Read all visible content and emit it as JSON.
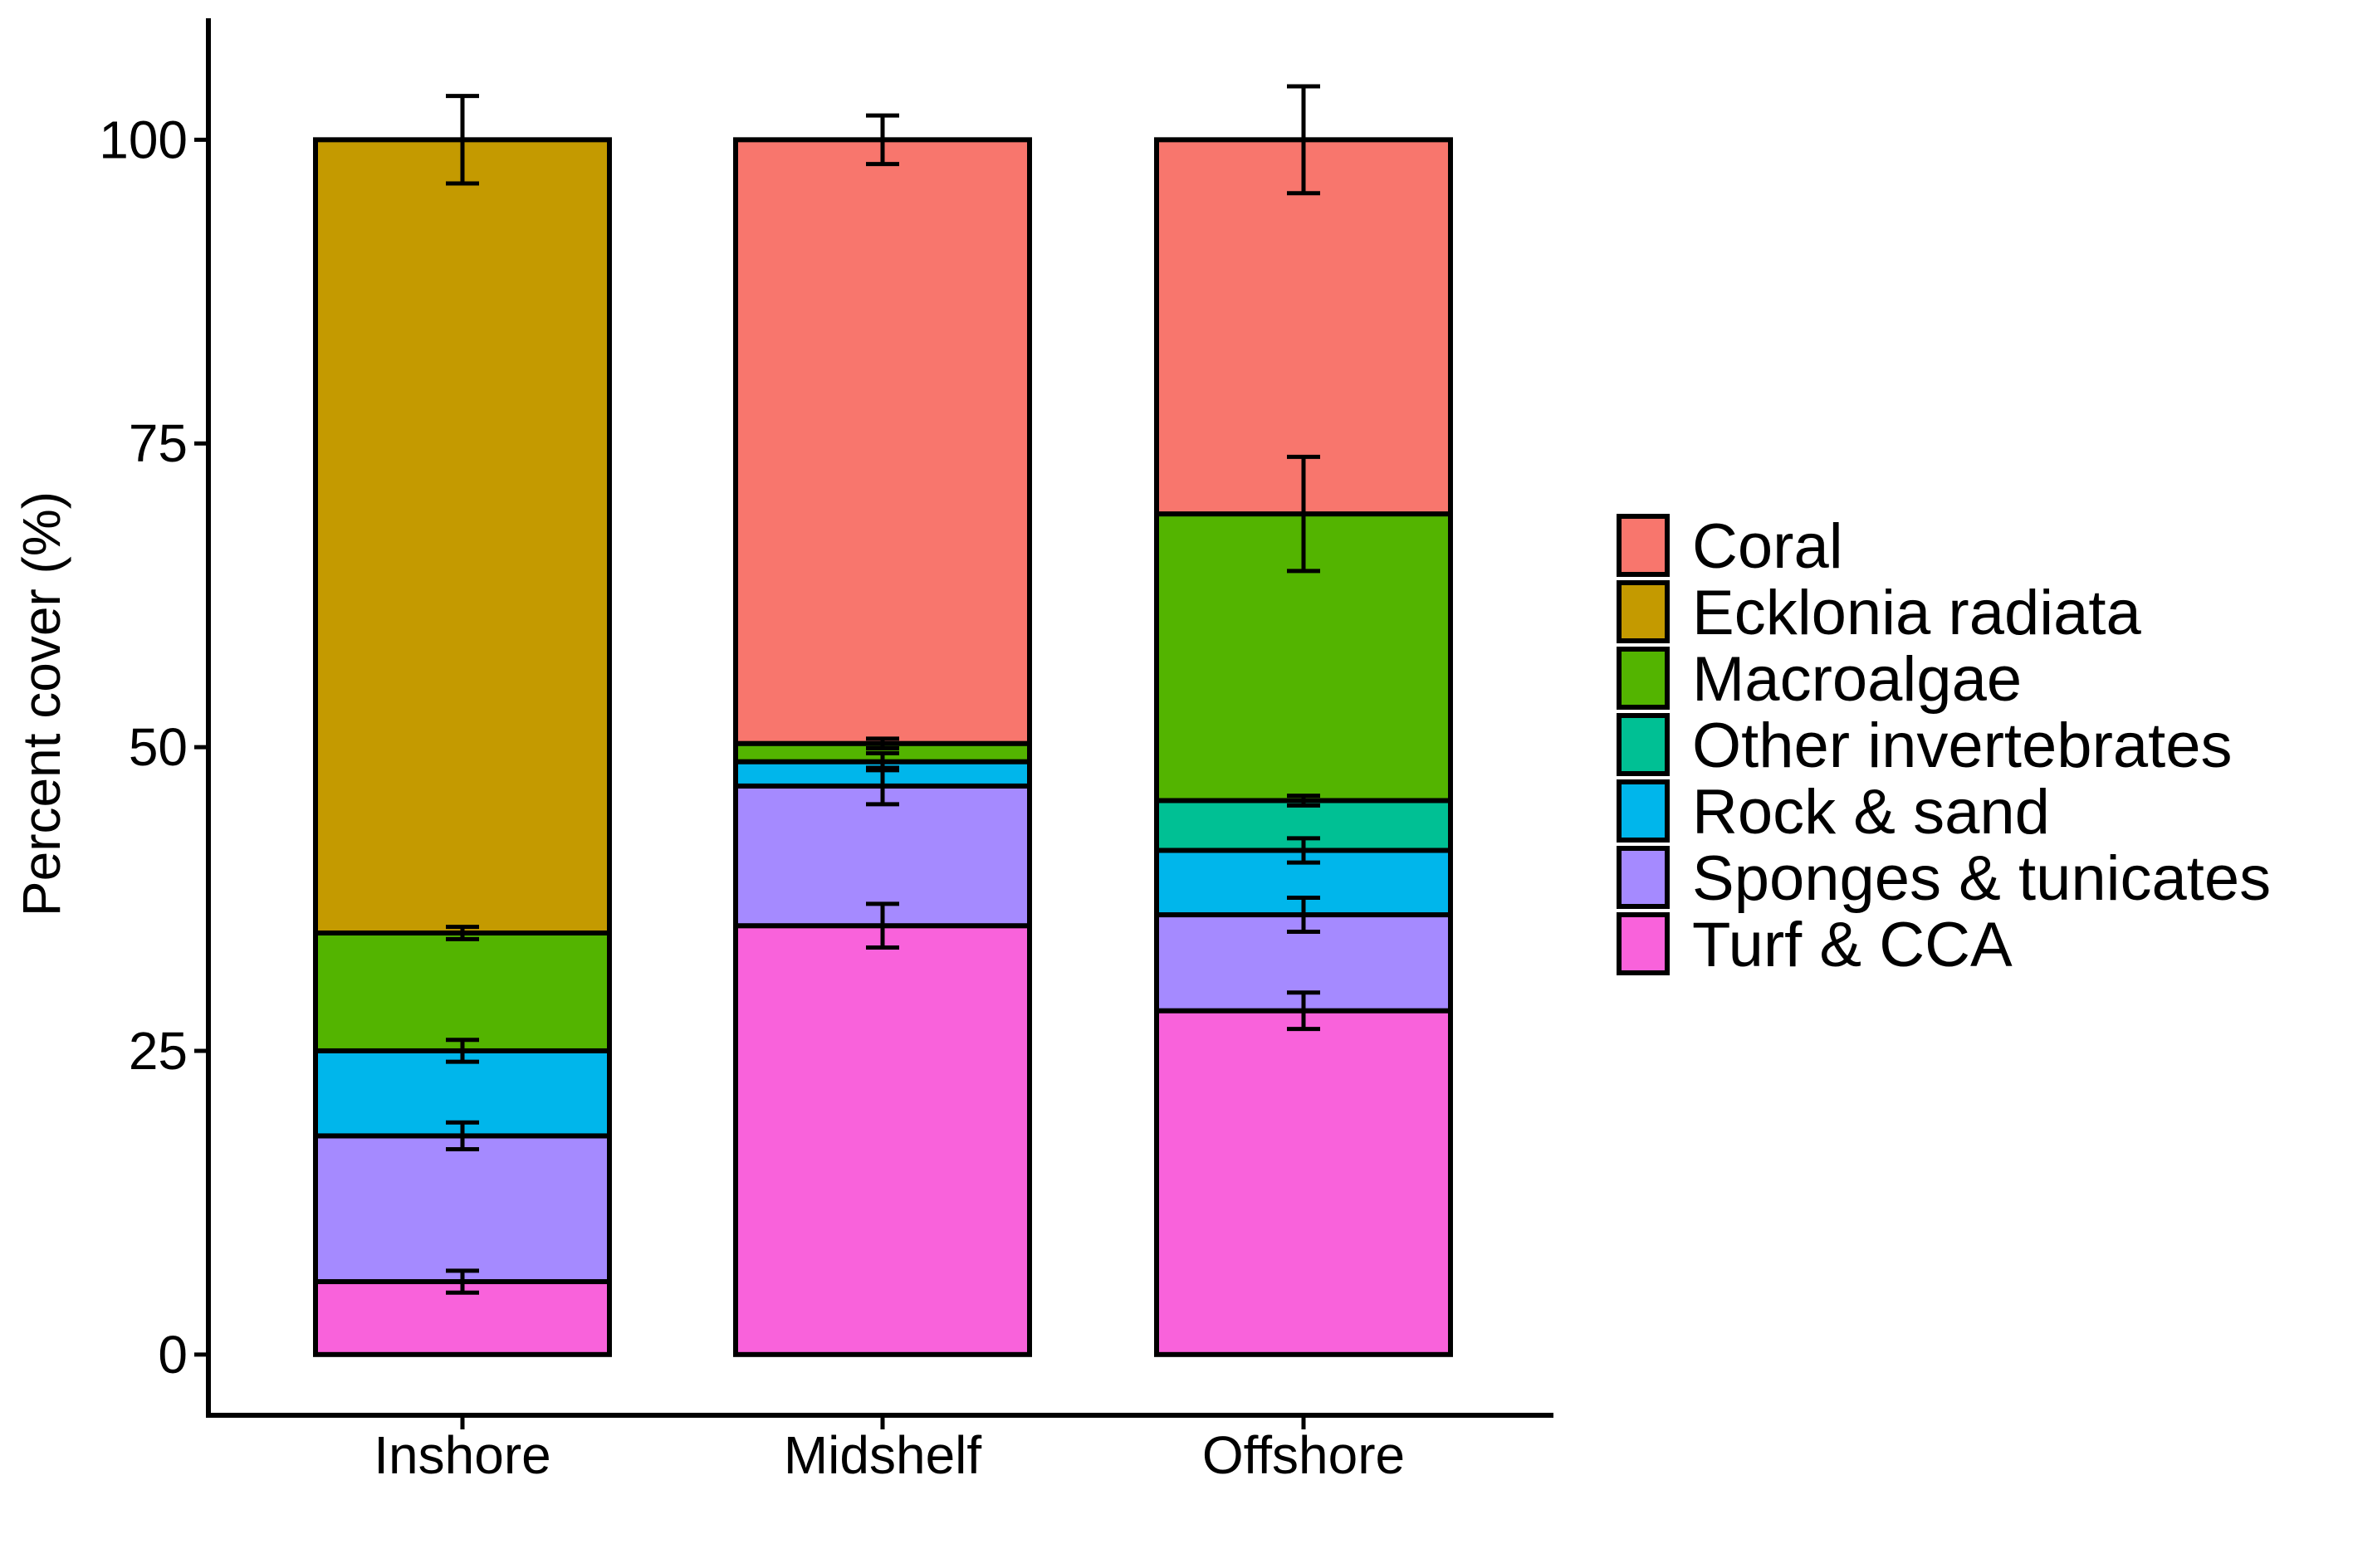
{
  "chart_data": {
    "type": "bar",
    "stacked": true,
    "title": "",
    "xlabel": "",
    "ylabel": "Percent cover (%)",
    "ylim": [
      -5,
      110
    ],
    "yticks": [
      0,
      25,
      50,
      75,
      100
    ],
    "ytick_labels": [
      "0",
      "25",
      "50",
      "75",
      "100"
    ],
    "categories": [
      "Inshore",
      "Midshelf",
      "Offshore"
    ],
    "legend_position": "right",
    "grid": false,
    "series": [
      {
        "name": "Turf & CCA",
        "color": "#F962DB",
        "values": [
          6,
          35.3,
          28.3
        ],
        "errors": [
          0.9,
          1.8,
          1.5
        ]
      },
      {
        "name": "Sponges & tunicates",
        "color": "#A58AFF",
        "values": [
          12,
          11.5,
          7.9
        ],
        "errors": [
          1.1,
          1.5,
          1.4
        ]
      },
      {
        "name": "Rock & sand",
        "color": "#00B6EB",
        "values": [
          7,
          2,
          5.3
        ],
        "errors": [
          0.9,
          0.7,
          1.0
        ]
      },
      {
        "name": "Other invertebrates",
        "color": "#00C094",
        "values": [
          0,
          0,
          4.1
        ],
        "errors": [
          0,
          0,
          0.4
        ]
      },
      {
        "name": "Macroalgae",
        "color": "#53B400",
        "values": [
          9.7,
          1.5,
          23.6
        ],
        "errors": [
          0.5,
          0.4,
          4.7
        ]
      },
      {
        "name": "Ecklonia radiata",
        "color": "#C49A00",
        "values": [
          65.3,
          0,
          0
        ],
        "errors": [
          3.6,
          0,
          0
        ]
      },
      {
        "name": "Coral",
        "color": "#F8766D",
        "values": [
          0,
          49.7,
          30.8
        ],
        "errors": [
          0,
          2.0,
          4.4
        ]
      }
    ],
    "legend_order": [
      "Coral",
      "Ecklonia radiata",
      "Macroalgae",
      "Other invertebrates",
      "Rock & sand",
      "Sponges & tunicates",
      "Turf & CCA"
    ]
  }
}
